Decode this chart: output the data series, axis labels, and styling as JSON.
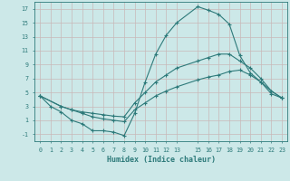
{
  "background_color": "#cce8e8",
  "grid_color": "#b8d8d8",
  "line_color": "#2d7a7a",
  "xlabel": "Humidex (Indice chaleur)",
  "xlim": [
    -0.5,
    23.5
  ],
  "ylim": [
    -2,
    18
  ],
  "xticks": [
    0,
    1,
    2,
    3,
    4,
    5,
    6,
    7,
    8,
    9,
    10,
    11,
    12,
    13,
    15,
    16,
    17,
    18,
    19,
    20,
    21,
    22,
    23
  ],
  "yticks": [
    -1,
    1,
    3,
    5,
    7,
    9,
    11,
    13,
    15,
    17
  ],
  "curve1_x": [
    0,
    1,
    2,
    3,
    4,
    5,
    6,
    7,
    8,
    9,
    10,
    11,
    12,
    13,
    15,
    16,
    17,
    18,
    19,
    20,
    21,
    22,
    23
  ],
  "curve1_y": [
    4.5,
    3.0,
    2.2,
    1.0,
    0.5,
    -0.5,
    -0.5,
    -0.7,
    -1.2,
    2.0,
    6.5,
    10.5,
    13.2,
    15.0,
    17.3,
    16.8,
    16.2,
    14.8,
    10.3,
    7.8,
    6.5,
    5.2,
    4.2
  ],
  "curve2_x": [
    0,
    2,
    3,
    4,
    5,
    6,
    7,
    8,
    9,
    10,
    11,
    12,
    13,
    15,
    16,
    17,
    18,
    19,
    20,
    21,
    22,
    23
  ],
  "curve2_y": [
    4.5,
    3.0,
    2.5,
    2.2,
    2.0,
    1.8,
    1.6,
    1.5,
    3.5,
    5.0,
    6.5,
    7.5,
    8.5,
    9.5,
    10.0,
    10.5,
    10.5,
    9.5,
    8.5,
    7.0,
    5.2,
    4.2
  ],
  "curve3_x": [
    0,
    2,
    3,
    4,
    5,
    6,
    7,
    8,
    9,
    10,
    11,
    12,
    13,
    15,
    16,
    17,
    18,
    19,
    20,
    21,
    22,
    23
  ],
  "curve3_y": [
    4.5,
    3.0,
    2.5,
    2.0,
    1.5,
    1.2,
    1.0,
    0.8,
    2.5,
    3.5,
    4.5,
    5.2,
    5.8,
    6.8,
    7.2,
    7.5,
    8.0,
    8.2,
    7.5,
    6.5,
    4.8,
    4.2
  ],
  "marker_size": 2.5,
  "linewidth": 0.8
}
